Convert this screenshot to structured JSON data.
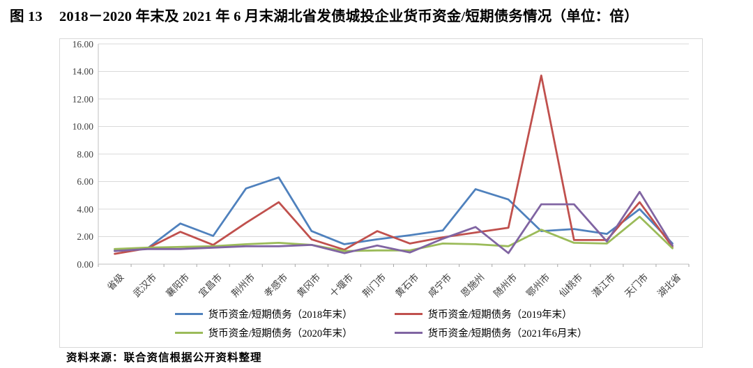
{
  "fig_label": "图 13",
  "title": "2018－2020 年末及 2021 年 6 月末湖北省发债城投企业货币资金/短期债务情况（单位：倍）",
  "source": "资料来源：联合资信根据公开资料整理",
  "colors": {
    "grid": "#d9d9d9",
    "axis": "#bfbfbf",
    "tick": "#a6a6a6",
    "label_text": "#3f3f3f",
    "series_blue": "#4f81bd",
    "series_red": "#c0504d",
    "series_green": "#9bbb59",
    "series_purple": "#8064a2"
  },
  "chart_data": {
    "type": "line",
    "title": "2018－2020 年末及 2021 年 6 月末湖北省发债城投企业货币资金/短期债务情况（单位：倍）",
    "xlabel": "",
    "ylabel": "",
    "ylim": [
      0,
      16
    ],
    "ytick_step": 2,
    "ytick_labels_top_to_bottom": [
      "16.00",
      "14.00",
      "12.00",
      "10.00",
      "8.00",
      "6.00",
      "4.00",
      "2.00",
      "0.00"
    ],
    "grid": true,
    "legend_position": "bottom",
    "categories": [
      "省级",
      "武汉市",
      "襄阳市",
      "宜昌市",
      "荆州市",
      "孝感市",
      "黄冈市",
      "十堰市",
      "荆门市",
      "黄石市",
      "咸宁市",
      "恩施州",
      "随州市",
      "鄂州市",
      "仙桃市",
      "潜江市",
      "天门市",
      "湖北省"
    ],
    "series": [
      {
        "name": "货币资金/短期债务（2018年末）",
        "color": "#4f81bd",
        "values": [
          1.0,
          1.15,
          2.95,
          2.05,
          5.5,
          6.3,
          2.4,
          1.45,
          1.8,
          2.1,
          2.45,
          5.45,
          4.7,
          2.4,
          2.55,
          2.2,
          4.0,
          1.5
        ]
      },
      {
        "name": "货币资金/短期债务（2019年末）",
        "color": "#c0504d",
        "values": [
          0.75,
          1.15,
          2.35,
          1.4,
          3.0,
          4.5,
          1.8,
          1.05,
          2.4,
          1.5,
          1.95,
          2.3,
          2.65,
          13.7,
          1.75,
          1.75,
          4.5,
          1.25
        ]
      },
      {
        "name": "货币资金/短期债务（2020年末）",
        "color": "#9bbb59",
        "values": [
          1.1,
          1.2,
          1.25,
          1.3,
          1.45,
          1.55,
          1.4,
          0.95,
          1.0,
          1.0,
          1.5,
          1.45,
          1.3,
          2.5,
          1.55,
          1.5,
          3.45,
          1.15
        ]
      },
      {
        "name": "货币资金/短期债务（2021年6月末）",
        "color": "#8064a2",
        "values": [
          0.95,
          1.1,
          1.1,
          1.2,
          1.3,
          1.3,
          1.4,
          0.8,
          1.35,
          0.85,
          1.85,
          2.7,
          0.8,
          4.35,
          4.35,
          1.65,
          5.25,
          1.35
        ]
      }
    ]
  }
}
